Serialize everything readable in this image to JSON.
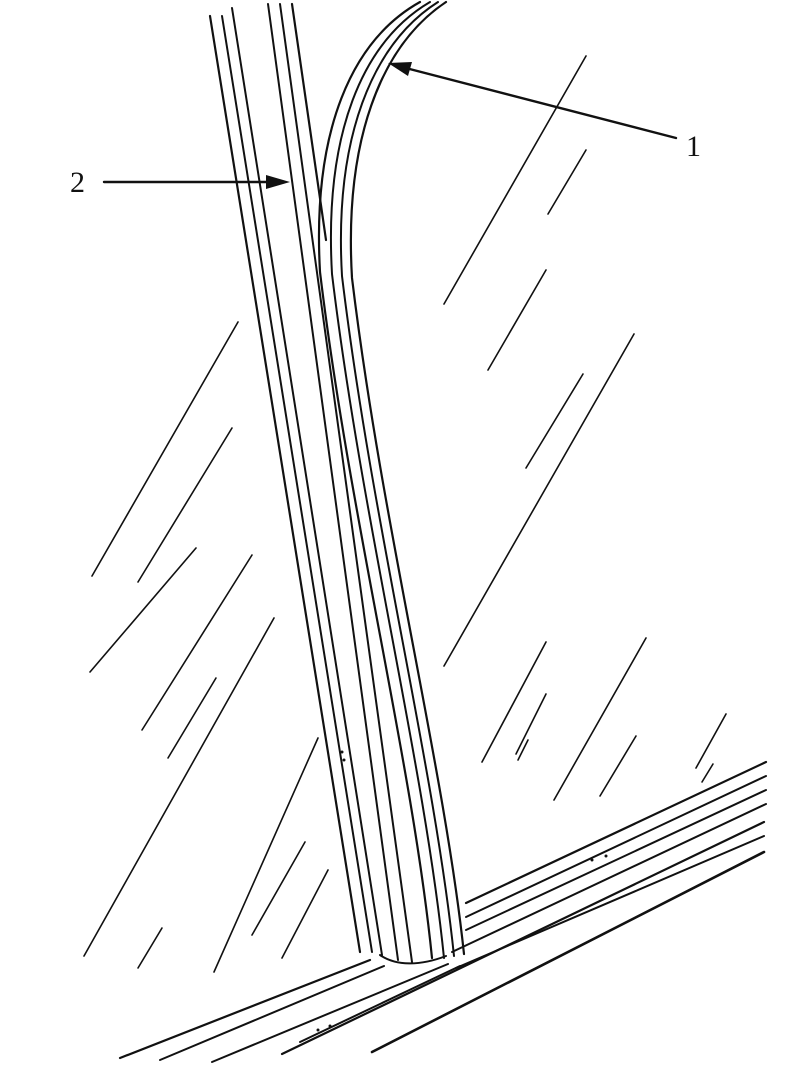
{
  "callouts": [
    {
      "id": "1",
      "text": "1"
    },
    {
      "id": "2",
      "text": "2"
    }
  ],
  "colors": {
    "ink": "#111111",
    "background": "#ffffff"
  }
}
